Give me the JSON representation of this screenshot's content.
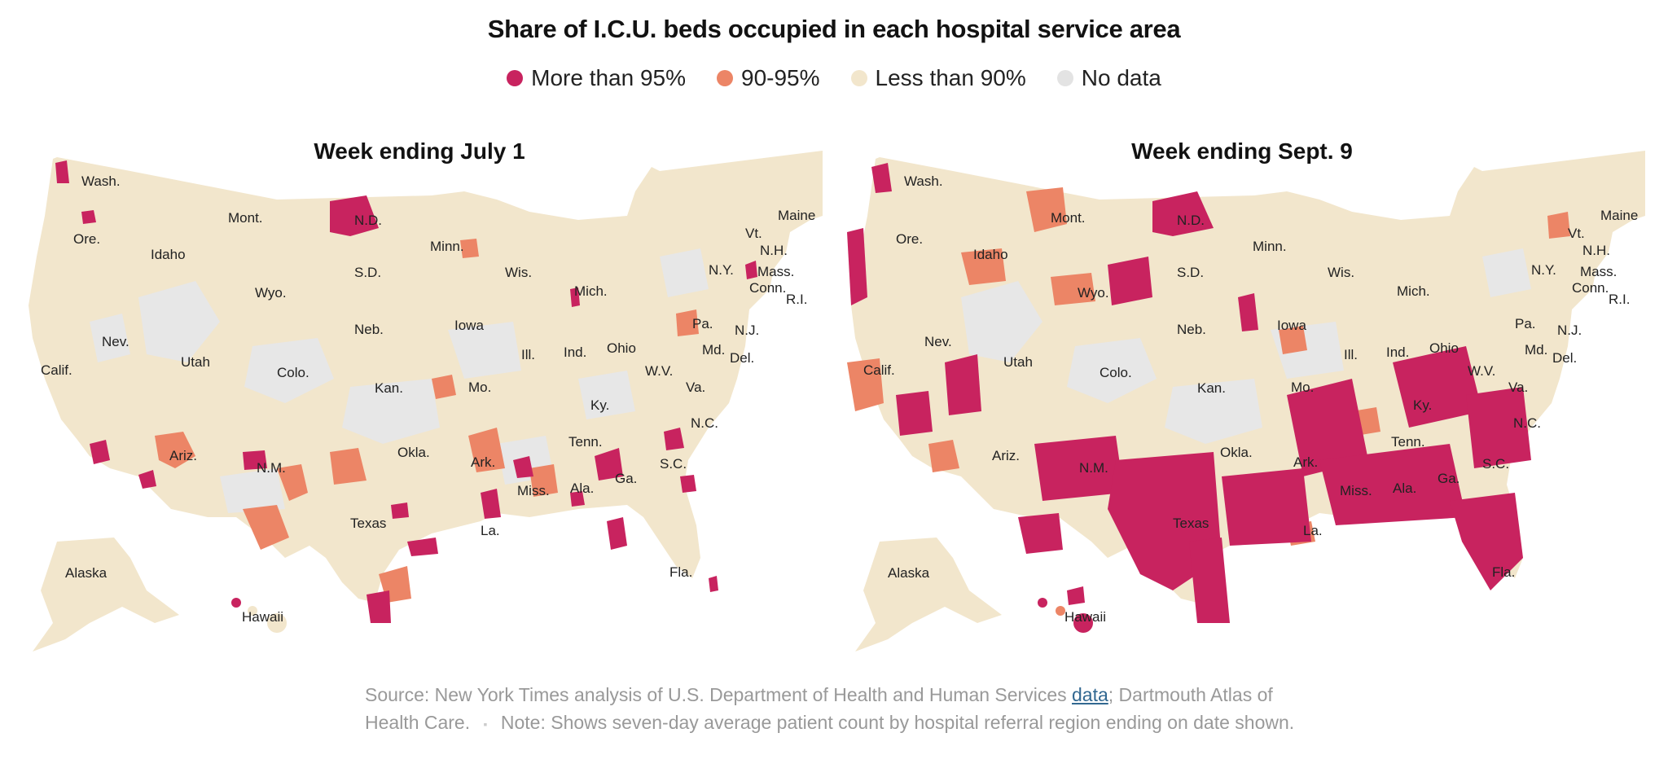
{
  "title": "Share of I.C.U. beds occupied in each hospital service area",
  "legend": [
    {
      "label": "More than 95%",
      "color": "#c8235f"
    },
    {
      "label": "90-95%",
      "color": "#ec8566"
    },
    {
      "label": "Less than 90%",
      "color": "#f2e6cc"
    },
    {
      "label": "No data",
      "color": "#e3e3e3"
    }
  ],
  "maps": [
    {
      "title": "Week ending July 1"
    },
    {
      "title": "Week ending Sept. 9"
    }
  ],
  "state_labels": [
    "Wash.",
    "Mont.",
    "N.D.",
    "Minn.",
    "Ore.",
    "Idaho",
    "S.D.",
    "Wis.",
    "Wyo.",
    "Mich.",
    "Maine",
    "Vt.",
    "N.H.",
    "Mass.",
    "N.Y.",
    "Conn.",
    "R.I.",
    "Nev.",
    "Neb.",
    "Iowa",
    "Pa.",
    "N.J.",
    "Utah",
    "Ill.",
    "Ind.",
    "Ohio",
    "Md.",
    "Del.",
    "Calif.",
    "Colo.",
    "W.V.",
    "Kan.",
    "Mo.",
    "Va.",
    "Ky.",
    "N.C.",
    "Tenn.",
    "Okla.",
    "Ark.",
    "S.C.",
    "Ariz.",
    "N.M.",
    "Ga.",
    "Miss.",
    "Ala.",
    "Texas",
    "La.",
    "Fla.",
    "Alaska",
    "Hawaii"
  ],
  "source": {
    "prefix": "Source: New York Times analysis of U.S. Department of Health and Human Services ",
    "link": "data",
    "suffix": "; Dartmouth Atlas of Health Care.",
    "separator": "▪",
    "note": "Note: Shows seven-day average patient count by hospital referral region ending on date shown."
  }
}
